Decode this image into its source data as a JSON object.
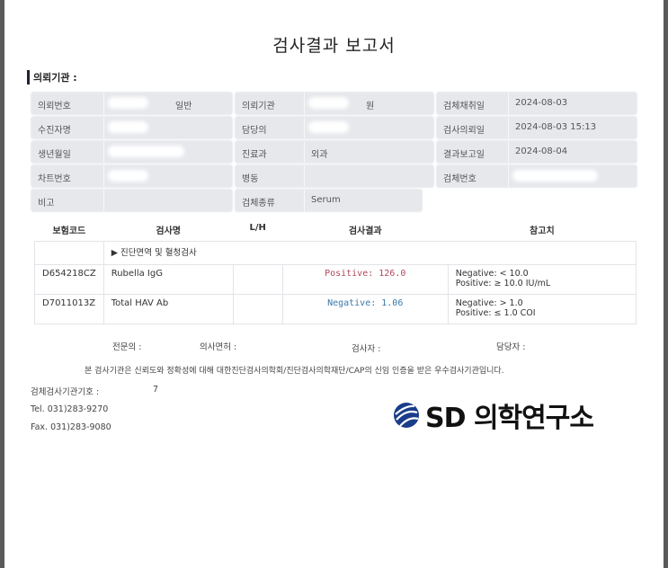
{
  "title": "검사결과 보고서",
  "institution_label": "의뢰기관 :",
  "fields": {
    "c1": [
      {
        "label": "의뢰번호",
        "extra": "일반"
      },
      {
        "label": "수진자명"
      },
      {
        "label": "생년월일"
      },
      {
        "label": "차트번호"
      },
      {
        "label": "비고"
      }
    ],
    "c2": [
      {
        "label": "의뢰기관",
        "extra": "원"
      },
      {
        "label": "담당의"
      },
      {
        "label": "진료과",
        "value": "외과"
      },
      {
        "label": "병동"
      },
      {
        "label": "검체종류",
        "value": "Serum"
      }
    ],
    "c3": [
      {
        "label": "검체채취일",
        "value": "2024-08-03"
      },
      {
        "label": "검사의뢰일",
        "value": "2024-08-03 15:13"
      },
      {
        "label": "결과보고일",
        "value": "2024-08-04"
      },
      {
        "label": "검체번호"
      }
    ]
  },
  "table": {
    "headers": [
      "보험코드",
      "검사명",
      "L/H",
      "검사결과",
      "참고치"
    ],
    "category": "▶ 진단면역 및 혈청검사",
    "rows": [
      {
        "code": "D654218CZ",
        "name": "Rubella IgG",
        "lh": "",
        "result": "Positive: 126.0",
        "ref1": "Negative: < 10.0",
        "ref2": "Positive: ≥ 10.0 IU/mL",
        "color": "#b0485a"
      },
      {
        "code": "D7011013Z",
        "name": "Total HAV Ab",
        "lh": "",
        "result": "Negative: 1.06",
        "ref1": "Negative: > 1.0",
        "ref2": "Positive: ≤ 1.0 COI",
        "color": "#3a78a8"
      }
    ]
  },
  "signatures": {
    "specialist": "전문의 :",
    "license": "의사면허 :",
    "tester": "검사자 :",
    "manager": "담당자 :"
  },
  "certification": "본 검사기관은 신뢰도와 정확성에 대해 대한진단검사의학회/진단검사의학재단/CAP의 신임 인증을 받은 우수검사기관입니다.",
  "footer": {
    "agency_code": "검체검사기관기호 :",
    "agency_code_partial": "7",
    "tel": "Tel. 031)283-9270",
    "fax": "Fax. 031)283-9080"
  },
  "logo": {
    "text": "SD 의학연구소",
    "color": "#1a3d8a"
  }
}
